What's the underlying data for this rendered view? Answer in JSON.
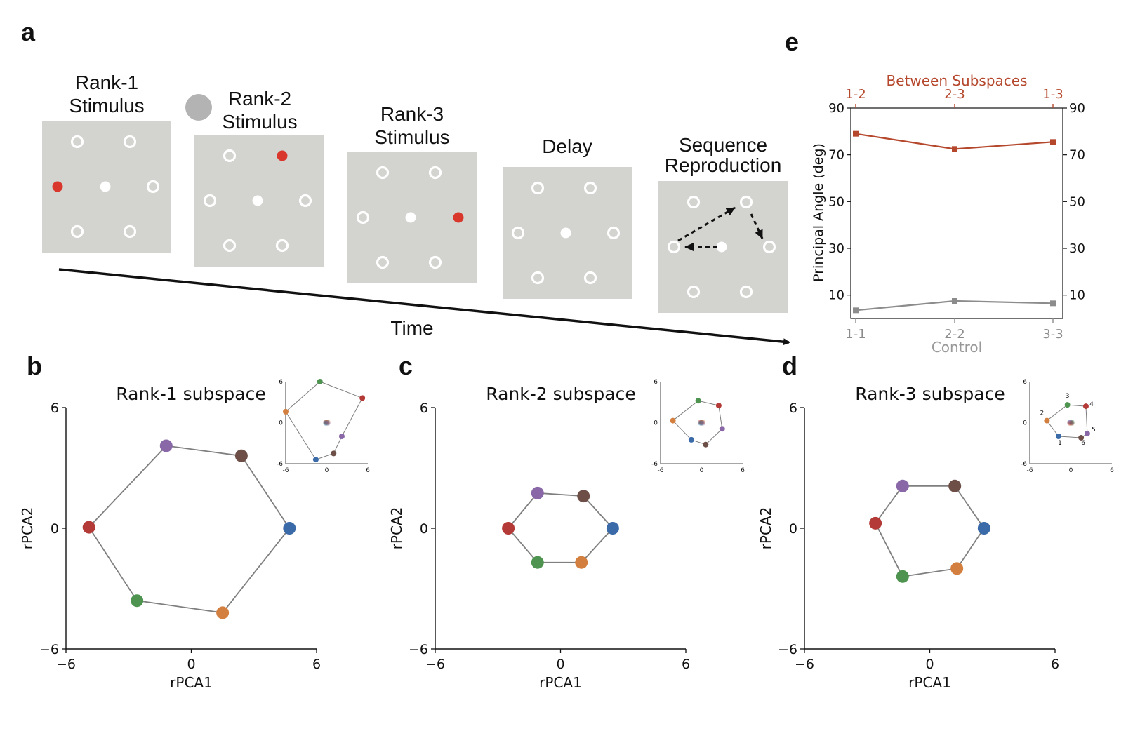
{
  "panel_letters": {
    "a": "a",
    "b": "b",
    "c": "c",
    "d": "d",
    "e": "e"
  },
  "panel_a": {
    "stimuli": [
      {
        "title_lines": [
          "Rank-1",
          "Stimulus"
        ],
        "red_target": "left"
      },
      {
        "title_lines": [
          "Rank-2",
          "Stimulus"
        ],
        "red_target": "top-right"
      },
      {
        "title_lines": [
          "Rank-3",
          "Stimulus"
        ],
        "red_target": "right"
      },
      {
        "title_lines": [
          "Delay"
        ],
        "red_target": ""
      },
      {
        "title_lines": [
          "Sequence",
          "Reproduction"
        ],
        "red_target": ""
      }
    ],
    "time_label": "Time",
    "colors": {
      "screen": "#d3d4cf",
      "target": "#ffffff",
      "cue": "#d9372c",
      "indicator": "#b3b3b3"
    }
  },
  "subspace_plots": [
    {
      "title": "Rank-1 subspace",
      "xlabel": "rPCA1",
      "ylabel": "rPCA2",
      "ticks": [
        "−6",
        "0",
        "6"
      ],
      "xlim": [
        -6,
        6
      ],
      "ylim": [
        -6,
        6
      ],
      "nodes": [
        {
          "x": 4.7,
          "y": 0.0,
          "color": "#3a6aa8"
        },
        {
          "x": 2.4,
          "y": 3.6,
          "color": "#6e4f48"
        },
        {
          "x": -1.2,
          "y": 4.1,
          "color": "#8a68a8"
        },
        {
          "x": -4.9,
          "y": 0.05,
          "color": "#b33a36"
        },
        {
          "x": -2.6,
          "y": -3.6,
          "color": "#4e9450"
        },
        {
          "x": 1.5,
          "y": -4.2,
          "color": "#d37f3f"
        }
      ],
      "inset": {
        "ticks": [
          "-6",
          "0",
          "6"
        ],
        "nodes": [
          {
            "x": 5.2,
            "y": 3.6,
            "color": "#b33a36"
          },
          {
            "x": -1.0,
            "y": 6.0,
            "color": "#4e9450"
          },
          {
            "x": -6.0,
            "y": 1.6,
            "color": "#d37f3f"
          },
          {
            "x": -1.6,
            "y": -5.4,
            "color": "#3a6aa8"
          },
          {
            "x": 1.0,
            "y": -4.5,
            "color": "#6e4f48"
          },
          {
            "x": 2.2,
            "y": -2.0,
            "color": "#8a68a8"
          }
        ],
        "labels": []
      }
    },
    {
      "title": "Rank-2 subspace",
      "xlabel": "rPCA1",
      "ylabel": "rPCA2",
      "ticks": [
        "−6",
        "0",
        "6"
      ],
      "xlim": [
        -6,
        6
      ],
      "ylim": [
        -6,
        6
      ],
      "nodes": [
        {
          "x": 2.5,
          "y": 0.0,
          "color": "#3a6aa8"
        },
        {
          "x": 1.1,
          "y": 1.6,
          "color": "#6e4f48"
        },
        {
          "x": -1.1,
          "y": 1.75,
          "color": "#8a68a8"
        },
        {
          "x": -2.5,
          "y": 0.0,
          "color": "#b33a36"
        },
        {
          "x": -1.1,
          "y": -1.7,
          "color": "#4e9450"
        },
        {
          "x": 1.0,
          "y": -1.7,
          "color": "#d37f3f"
        }
      ],
      "inset": {
        "ticks": [
          "-6",
          "0",
          "6"
        ],
        "nodes": [
          {
            "x": 2.5,
            "y": 2.5,
            "color": "#b33a36"
          },
          {
            "x": -0.5,
            "y": 3.2,
            "color": "#4e9450"
          },
          {
            "x": -4.2,
            "y": 0.3,
            "color": "#d37f3f"
          },
          {
            "x": -1.5,
            "y": -2.5,
            "color": "#3a6aa8"
          },
          {
            "x": 0.6,
            "y": -3.2,
            "color": "#6e4f48"
          },
          {
            "x": 3.0,
            "y": -0.9,
            "color": "#8a68a8"
          }
        ],
        "labels": []
      }
    },
    {
      "title": "Rank-3 subspace",
      "xlabel": "rPCA1",
      "ylabel": "rPCA2",
      "ticks": [
        "−6",
        "0",
        "6"
      ],
      "xlim": [
        -6,
        6
      ],
      "ylim": [
        -6,
        6
      ],
      "nodes": [
        {
          "x": 2.6,
          "y": 0.0,
          "color": "#3a6aa8"
        },
        {
          "x": 1.2,
          "y": 2.1,
          "color": "#6e4f48"
        },
        {
          "x": -1.3,
          "y": 2.1,
          "color": "#8a68a8"
        },
        {
          "x": -2.6,
          "y": 0.25,
          "color": "#b33a36"
        },
        {
          "x": -1.3,
          "y": -2.4,
          "color": "#4e9450"
        },
        {
          "x": 1.3,
          "y": -2.0,
          "color": "#d37f3f"
        }
      ],
      "inset": {
        "ticks": [
          "-6",
          "0",
          "6"
        ],
        "nodes": [
          {
            "x": -1.8,
            "y": -2.0,
            "color": "#3a6aa8"
          },
          {
            "x": -3.5,
            "y": 0.3,
            "color": "#d37f3f"
          },
          {
            "x": -0.5,
            "y": 2.6,
            "color": "#4e9450"
          },
          {
            "x": 2.2,
            "y": 2.4,
            "color": "#b33a36"
          },
          {
            "x": 2.4,
            "y": -1.6,
            "color": "#8a68a8"
          },
          {
            "x": 1.5,
            "y": -2.2,
            "color": "#6e4f48"
          }
        ],
        "labels": [
          "1",
          "2",
          "3",
          "4",
          "5",
          "6"
        ]
      }
    }
  ],
  "chart_data": {
    "type": "line",
    "top_axis_title": "Between Subspaces",
    "bottom_axis_title": "Control",
    "ylabel": "Principal Angle (deg)",
    "yticks": [
      "90",
      "70",
      "50",
      "30",
      "10"
    ],
    "ylim": [
      0,
      90
    ],
    "series": [
      {
        "name": "Between Subspaces",
        "categories": [
          "1-2",
          "2-3",
          "1-3"
        ],
        "values": [
          79,
          72.5,
          75.5
        ],
        "color": "#b5472c"
      },
      {
        "name": "Control",
        "categories": [
          "1-1",
          "2-2",
          "3-3"
        ],
        "values": [
          3.5,
          7.5,
          6.5
        ],
        "color": "#8c8c8c"
      }
    ]
  }
}
